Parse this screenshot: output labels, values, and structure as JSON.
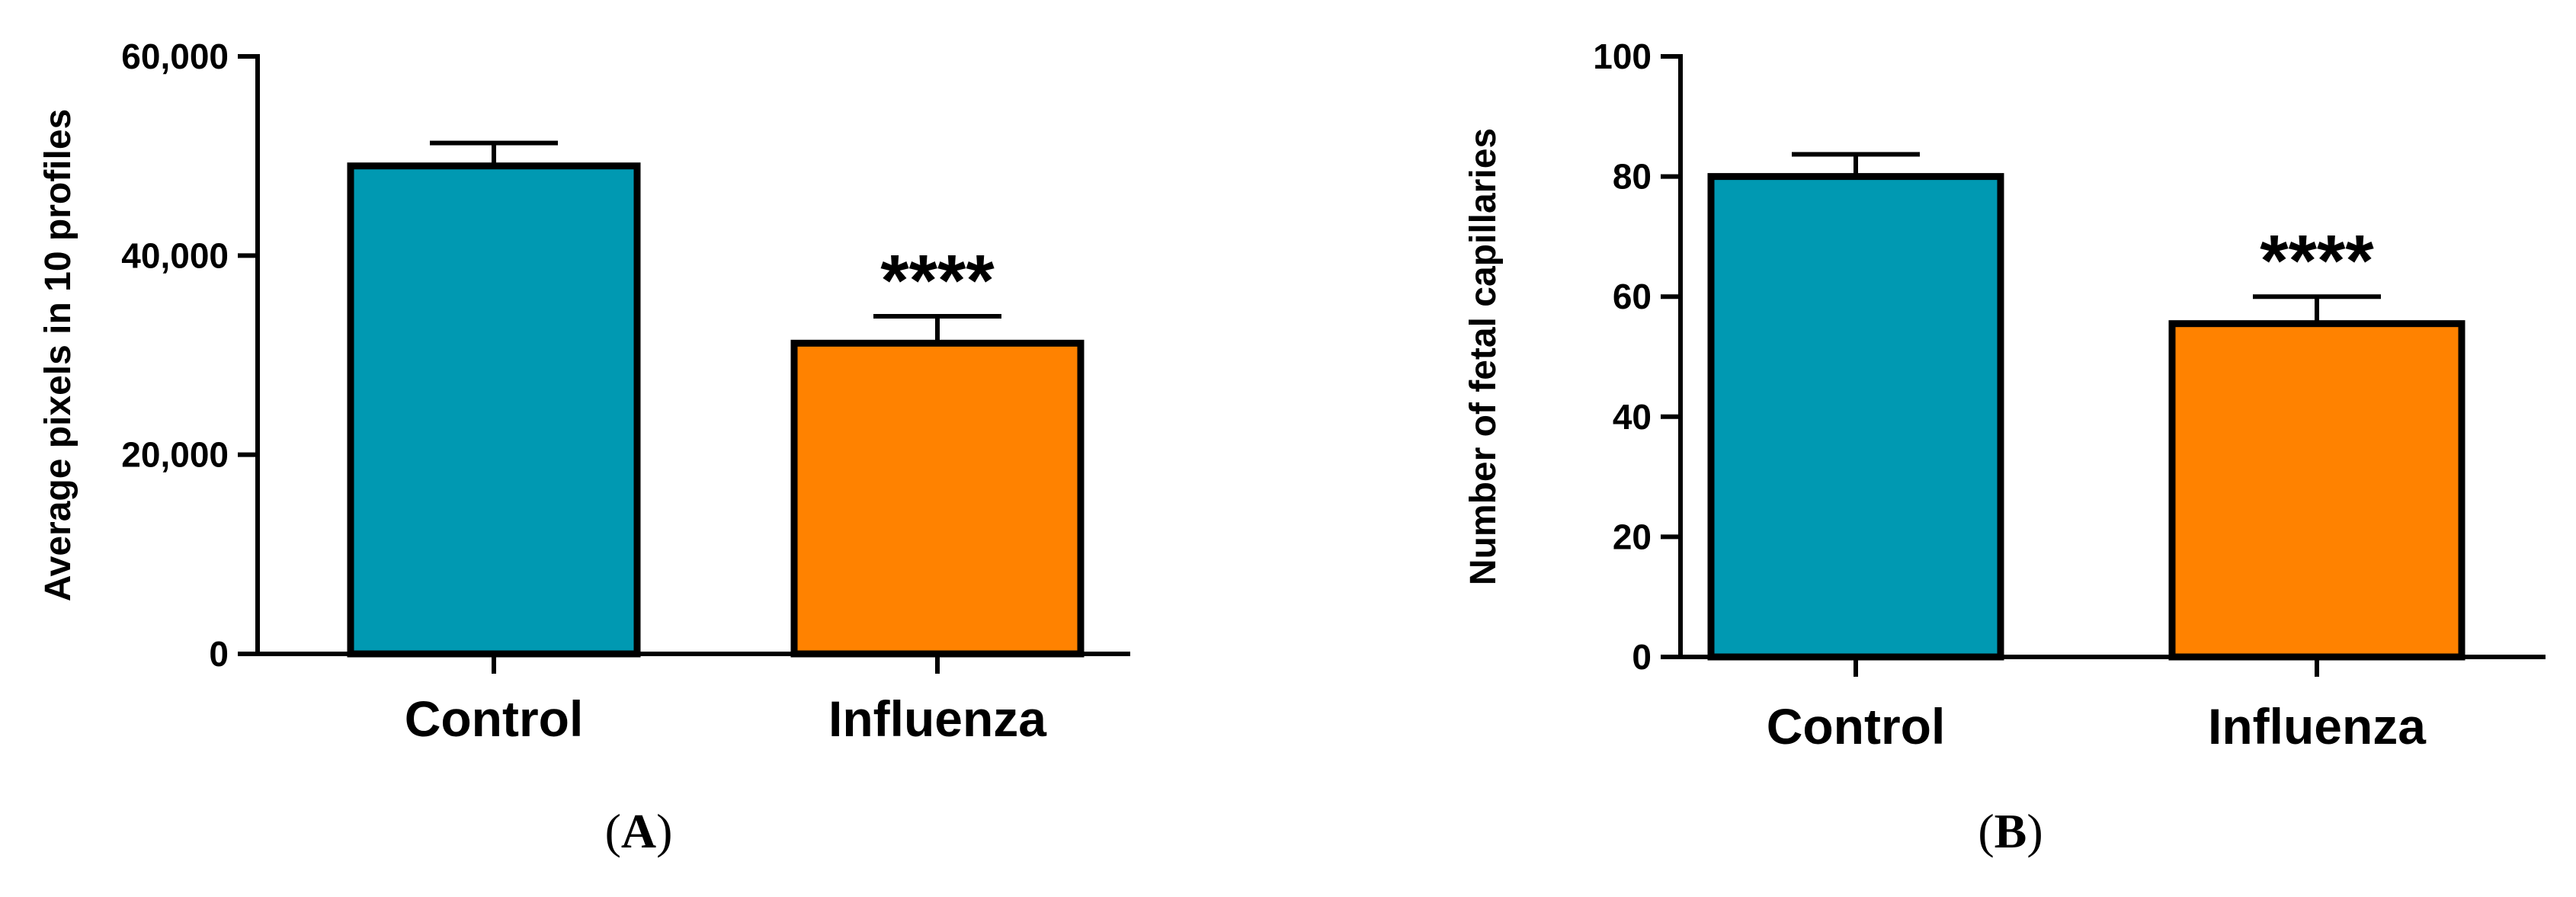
{
  "colors": {
    "control": "#0099B2",
    "influenza": "#FF8200"
  },
  "chart_data": [
    {
      "type": "bar",
      "panel_label": "A",
      "categories": [
        "Control",
        "Influenza"
      ],
      "values": [
        49000,
        31200
      ],
      "errors": [
        2300,
        2700
      ],
      "significance": [
        "",
        "****"
      ],
      "ylabel": "Average pixels in 10 profiles",
      "ylim": [
        0,
        60000
      ],
      "yticks": [
        0,
        20000,
        40000,
        60000
      ],
      "ytick_labels": [
        "0",
        "20,000",
        "40,000",
        "60,000"
      ],
      "grid": false,
      "legend": "none"
    },
    {
      "type": "bar",
      "panel_label": "B",
      "categories": [
        "Control",
        "Influenza"
      ],
      "values": [
        80,
        55.5
      ],
      "errors": [
        3.7,
        4.5
      ],
      "significance": [
        "",
        "****"
      ],
      "ylabel": "Number of fetal capillaries",
      "ylim": [
        0,
        100
      ],
      "yticks": [
        0,
        20,
        40,
        60,
        80,
        100
      ],
      "ytick_labels": [
        "0",
        "20",
        "40",
        "60",
        "80",
        "100"
      ],
      "grid": false,
      "legend": "none"
    }
  ]
}
